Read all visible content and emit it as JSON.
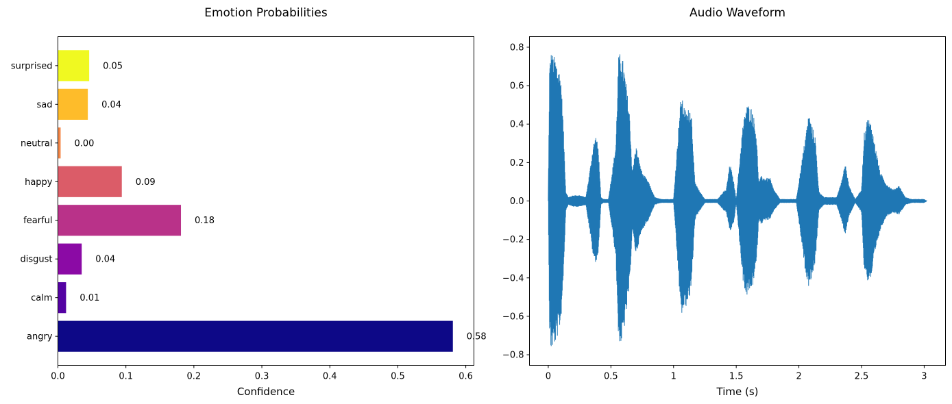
{
  "chart_data": [
    {
      "type": "bar",
      "orientation": "horizontal",
      "title": "Emotion Probabilities",
      "xlabel": "Confidence",
      "ylabel": "",
      "xlim": [
        0,
        0.612
      ],
      "xticks": [
        0.0,
        0.1,
        0.2,
        0.3,
        0.4,
        0.5,
        0.6
      ],
      "xtick_labels": [
        "0.0",
        "0.1",
        "0.2",
        "0.3",
        "0.4",
        "0.5",
        "0.6"
      ],
      "categories": [
        "angry",
        "calm",
        "disgust",
        "fearful",
        "happy",
        "neutral",
        "sad",
        "surprised"
      ],
      "values": [
        0.581,
        0.012,
        0.035,
        0.181,
        0.094,
        0.004,
        0.044,
        0.046
      ],
      "value_labels": [
        "0.58",
        "0.01",
        "0.04",
        "0.18",
        "0.09",
        "0.00",
        "0.04",
        "0.05"
      ],
      "colors": [
        "#0d0887",
        "#5402a3",
        "#8b0aa5",
        "#b93289",
        "#db5c68",
        "#f48849",
        "#febc2a",
        "#f0f921"
      ],
      "grid": false
    },
    {
      "type": "line",
      "title": "Audio Waveform",
      "xlabel": "Time (s)",
      "ylabel": "",
      "xlim": [
        -0.15,
        3.17
      ],
      "ylim": [
        -0.855,
        0.855
      ],
      "xticks": [
        0,
        0.5,
        1,
        1.5,
        2,
        2.5,
        3
      ],
      "xtick_labels": [
        "0",
        "0.5",
        "1",
        "1.5",
        "2",
        "2.5",
        "3"
      ],
      "yticks": [
        -0.8,
        -0.6,
        -0.4,
        -0.2,
        0.0,
        0.2,
        0.4,
        0.6,
        0.8
      ],
      "ytick_labels": [
        "−0.8",
        "−0.6",
        "−0.4",
        "−0.2",
        "0.0",
        "0.2",
        "0.4",
        "0.6",
        "0.8"
      ],
      "color": "#1f77b4",
      "grid": false,
      "envelope": {
        "t": [
          0.0,
          0.01,
          0.02,
          0.06,
          0.1,
          0.12,
          0.14,
          0.16,
          0.2,
          0.25,
          0.3,
          0.33,
          0.36,
          0.38,
          0.4,
          0.42,
          0.44,
          0.48,
          0.54,
          0.56,
          0.58,
          0.6,
          0.62,
          0.65,
          0.67,
          0.7,
          0.73,
          0.75,
          0.8,
          0.85,
          0.9,
          1.0,
          1.05,
          1.06,
          1.1,
          1.14,
          1.17,
          1.2,
          1.25,
          1.3,
          1.35,
          1.4,
          1.42,
          1.45,
          1.48,
          1.5,
          1.55,
          1.58,
          1.6,
          1.63,
          1.66,
          1.68,
          1.7,
          1.73,
          1.77,
          1.8,
          1.85,
          1.9,
          1.94,
          1.98,
          2.05,
          2.08,
          2.1,
          2.13,
          2.16,
          2.2,
          2.3,
          2.34,
          2.37,
          2.4,
          2.45,
          2.5,
          2.52,
          2.55,
          2.58,
          2.6,
          2.65,
          2.7,
          2.75,
          2.8,
          2.85,
          2.9,
          3.0,
          3.02
        ],
        "max": [
          0.0,
          0.7,
          0.78,
          0.74,
          0.66,
          0.4,
          0.05,
          0.02,
          0.03,
          0.03,
          0.02,
          0.15,
          0.3,
          0.34,
          0.28,
          0.02,
          0.01,
          0.01,
          0.3,
          0.75,
          0.78,
          0.72,
          0.62,
          0.45,
          0.15,
          0.29,
          0.2,
          0.15,
          0.1,
          0.02,
          0.01,
          0.01,
          0.48,
          0.55,
          0.46,
          0.5,
          0.1,
          0.06,
          0.01,
          0.01,
          0.01,
          0.05,
          0.06,
          0.2,
          0.1,
          0.01,
          0.38,
          0.5,
          0.5,
          0.48,
          0.36,
          0.1,
          0.13,
          0.12,
          0.12,
          0.06,
          0.01,
          0.01,
          0.01,
          0.01,
          0.33,
          0.46,
          0.4,
          0.34,
          0.05,
          0.02,
          0.02,
          0.1,
          0.2,
          0.08,
          0.01,
          0.06,
          0.35,
          0.44,
          0.4,
          0.32,
          0.15,
          0.09,
          0.06,
          0.08,
          0.02,
          0.01,
          0.01,
          0.0
        ],
        "min": [
          0.0,
          -0.68,
          -0.78,
          -0.74,
          -0.64,
          -0.4,
          -0.05,
          -0.02,
          -0.03,
          -0.03,
          -0.02,
          -0.15,
          -0.3,
          -0.32,
          -0.28,
          -0.02,
          -0.01,
          -0.01,
          -0.3,
          -0.72,
          -0.75,
          -0.7,
          -0.6,
          -0.45,
          -0.15,
          -0.28,
          -0.2,
          -0.15,
          -0.1,
          -0.02,
          -0.01,
          -0.01,
          -0.5,
          -0.6,
          -0.55,
          -0.48,
          -0.1,
          -0.06,
          -0.01,
          -0.01,
          -0.01,
          -0.05,
          -0.06,
          -0.16,
          -0.12,
          -0.01,
          -0.4,
          -0.5,
          -0.48,
          -0.45,
          -0.34,
          -0.1,
          -0.12,
          -0.1,
          -0.1,
          -0.05,
          -0.01,
          -0.01,
          -0.01,
          -0.01,
          -0.36,
          -0.45,
          -0.4,
          -0.33,
          -0.05,
          -0.02,
          -0.02,
          -0.1,
          -0.18,
          -0.08,
          -0.01,
          -0.06,
          -0.35,
          -0.42,
          -0.4,
          -0.3,
          -0.15,
          -0.08,
          -0.06,
          -0.07,
          -0.02,
          -0.01,
          -0.01,
          0.0
        ]
      }
    }
  ]
}
